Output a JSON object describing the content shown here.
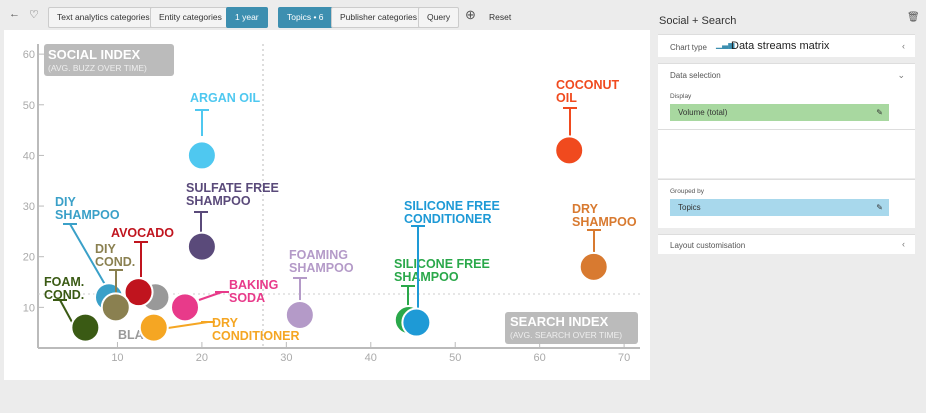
{
  "toolbar": {
    "buttons": [
      "Text analytics categories",
      "Entity categories",
      "1 year",
      "Topics • 6",
      "Publisher categories",
      "Query"
    ],
    "reset": "Reset"
  },
  "chart": {
    "type": "bubble",
    "y_title": "SOCIAL INDEX",
    "y_subtitle": "(AVG. BUZZ OVER TIME)",
    "x_title": "SEARCH INDEX",
    "x_subtitle": "(AVG. SEARCH OVER TIME)",
    "xlim": [
      0,
      72
    ],
    "ylim": [
      0,
      62
    ],
    "xticks": [
      10,
      20,
      30,
      40,
      50,
      60,
      70
    ],
    "yticks": [
      10,
      20,
      30,
      40,
      50,
      60
    ],
    "points": [
      {
        "label": [
          "ARGAN OIL"
        ],
        "x": 20,
        "y": 40,
        "color": "#4fc8f0"
      },
      {
        "label": [
          "SULFATE FREE",
          "SHAMPOO"
        ],
        "x": 20,
        "y": 22,
        "color": "#5a4a7a"
      },
      {
        "label": [
          "COCONUT",
          "OIL"
        ],
        "x": 63.5,
        "y": 41,
        "color": "#f04a1e"
      },
      {
        "label": [
          "DRY",
          "SHAMPOO"
        ],
        "x": 66.4,
        "y": 18,
        "color": "#d87a30"
      },
      {
        "label": [
          "SILICONE FREE",
          "CONDITIONER"
        ],
        "x": 45.4,
        "y": 7,
        "color": "#1e9ad6"
      },
      {
        "label": [
          "SILICONE FREE",
          "SHAMPOO"
        ],
        "x": 44.5,
        "y": 7.5,
        "color": "#2aa84a"
      },
      {
        "label": [
          "FOAMING",
          "SHAMPOO"
        ],
        "x": 31.6,
        "y": 8.5,
        "color": "#b49ac8"
      },
      {
        "label": [
          "BAKING",
          "SODA"
        ],
        "x": 18,
        "y": 10,
        "color": "#e83a8a"
      },
      {
        "label": [
          "DRY",
          "CONDITIONER"
        ],
        "x": 14.3,
        "y": 6,
        "color": "#f5a623"
      },
      {
        "label": [
          "BLACK"
        ],
        "x": 14.5,
        "y": 12,
        "color": "#999999"
      },
      {
        "label": [
          "AVOCADO"
        ],
        "x": 12.5,
        "y": 13,
        "color": "#c0141e"
      },
      {
        "label": [
          "DIY",
          "COND."
        ],
        "x": 9.8,
        "y": 10,
        "color": "#8a8050"
      },
      {
        "label": [
          "DIY",
          "SHAMPOO"
        ],
        "x": 9,
        "y": 12,
        "color": "#3aa0c8"
      },
      {
        "label": [
          "FOAM.",
          "COND."
        ],
        "x": 6.2,
        "y": 6,
        "color": "#3a5a14"
      }
    ]
  },
  "panel": {
    "title": "Social + Search",
    "chart_type_label": "Chart type",
    "chart_type": "Data streams matrix",
    "data_selection": "Data selection",
    "display_label": "Display",
    "display": "Volume (total)",
    "grouped_label": "Grouped by",
    "grouped": "Topics",
    "layout": "Layout customisation"
  }
}
